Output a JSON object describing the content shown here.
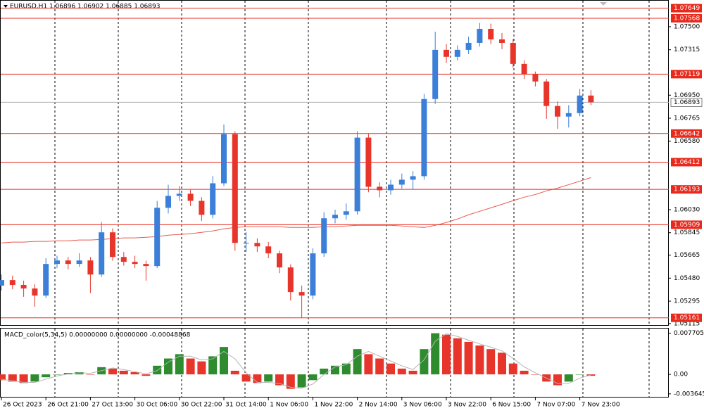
{
  "chart_data": [
    {
      "type": "candlestick",
      "title": "EURUSD,H1  1.06896 1.06902 1.06885 1.06893",
      "x": [
        0,
        4,
        8,
        12,
        16,
        20,
        24,
        28,
        32,
        36,
        40,
        44,
        48,
        52,
        56,
        60,
        64,
        68,
        72,
        76,
        80,
        84,
        88,
        92,
        96,
        100,
        104,
        108,
        112,
        116,
        120,
        124,
        128,
        132,
        136,
        140,
        144,
        148,
        152,
        156,
        160,
        164,
        168,
        172,
        176,
        180,
        184,
        188,
        192,
        196,
        200,
        204,
        208,
        212
      ],
      "open": [
        1.0542,
        1.05464,
        1.05425,
        1.05397,
        1.0534,
        1.05594,
        1.05622,
        1.05594,
        1.05622,
        1.05509,
        1.05848,
        1.0565,
        1.05611,
        1.05594,
        1.05577,
        1.06045,
        1.06141,
        1.06158,
        1.06101,
        1.05989,
        1.06242,
        1.06637,
        1.05763,
        1.05763,
        1.05735,
        1.05679,
        1.05566,
        1.05368,
        1.0534,
        1.05679,
        1.05961,
        1.05989,
        1.06017,
        1.06609,
        1.06214,
        1.06186,
        1.06231,
        1.06271,
        1.06299,
        1.06919,
        1.07314,
        1.07258,
        1.07314,
        1.0737,
        1.07483,
        1.07398,
        1.0737,
        1.07201,
        1.07117,
        1.0706,
        1.06863,
        1.06778,
        1.06806,
        1.06947
      ],
      "high": [
        1.0551,
        1.055,
        1.0546,
        1.0543,
        1.0564,
        1.0566,
        1.0565,
        1.0568,
        1.0565,
        1.0593,
        1.0588,
        1.0569,
        1.0566,
        1.0562,
        1.061,
        1.0623,
        1.0622,
        1.0619,
        1.0613,
        1.063,
        1.06715,
        1.0666,
        1.0585,
        1.058,
        1.0577,
        1.057,
        1.0559,
        1.0542,
        1.0572,
        1.0601,
        1.0603,
        1.0608,
        1.0666,
        1.0664,
        1.0625,
        1.0627,
        1.0632,
        1.0634,
        1.0696,
        1.0746,
        1.0736,
        1.0735,
        1.0742,
        1.0753,
        1.07525,
        1.0745,
        1.074,
        1.0723,
        1.0714,
        1.0708,
        1.069,
        1.0687,
        1.07,
        1.0699
      ],
      "low": [
        1.0538,
        1.0539,
        1.0533,
        1.0525,
        1.0532,
        1.0556,
        1.0555,
        1.0557,
        1.0536,
        1.0549,
        1.0562,
        1.0558,
        1.0556,
        1.0546,
        1.0556,
        1.06,
        1.061,
        1.0606,
        1.0594,
        1.0596,
        1.0622,
        1.057,
        1.0569,
        1.0569,
        1.0564,
        1.0552,
        1.053,
        1.0516,
        1.0531,
        1.0565,
        1.0592,
        1.0595,
        1.0599,
        1.0617,
        1.0613,
        1.0615,
        1.062,
        1.0619,
        1.0627,
        1.0688,
        1.0721,
        1.0723,
        1.0728,
        1.0734,
        1.0736,
        1.0732,
        1.0717,
        1.0708,
        1.0702,
        1.0676,
        1.0668,
        1.0669,
        1.0678,
        1.0687
      ],
      "close": [
        1.05464,
        1.05425,
        1.05397,
        1.0534,
        1.05594,
        1.05622,
        1.05594,
        1.05622,
        1.05509,
        1.05848,
        1.0565,
        1.05611,
        1.05594,
        1.05577,
        1.06045,
        1.06141,
        1.06158,
        1.06101,
        1.05989,
        1.06242,
        1.06637,
        1.05763,
        1.05763,
        1.05735,
        1.05679,
        1.05566,
        1.05368,
        1.0534,
        1.05679,
        1.05961,
        1.05989,
        1.06017,
        1.06609,
        1.06214,
        1.06186,
        1.06231,
        1.06271,
        1.06299,
        1.06919,
        1.07314,
        1.07258,
        1.07314,
        1.0737,
        1.07483,
        1.07398,
        1.0737,
        1.07201,
        1.07117,
        1.0706,
        1.06863,
        1.06778,
        1.06806,
        1.06947,
        1.06893
      ],
      "up_color": "#3b7fd9",
      "down_color": "#e8352b",
      "ma": {
        "color": "#e85a4f",
        "values": [
          1.05763,
          1.05769,
          1.05769,
          1.05775,
          1.05775,
          1.0578,
          1.0578,
          1.05786,
          1.05786,
          1.05791,
          1.05797,
          1.05803,
          1.05803,
          1.05808,
          1.05814,
          1.05825,
          1.05831,
          1.05837,
          1.05848,
          1.05859,
          1.05876,
          1.05887,
          1.05893,
          1.05893,
          1.05893,
          1.05893,
          1.05887,
          1.05887,
          1.05887,
          1.05893,
          1.05893,
          1.05899,
          1.05904,
          1.05904,
          1.05904,
          1.05904,
          1.05899,
          1.05893,
          1.05887,
          1.05904,
          1.05927,
          1.05955,
          1.05989,
          1.06017,
          1.06045,
          1.06073,
          1.06102,
          1.0613,
          1.06152,
          1.06181,
          1.06203,
          1.06231,
          1.06259,
          1.06288
        ]
      },
      "levels": {
        "color": "#e8291c",
        "values": [
          1.07649,
          1.07568,
          1.07119,
          1.06642,
          1.06412,
          1.06193,
          1.05909,
          1.05161
        ]
      },
      "last_price": 1.06893,
      "xlim": [
        0,
        240
      ],
      "ylim": [
        1.05103,
        1.07709
      ],
      "yticks": [
        {
          "value": 1.075,
          "label": "1.07500"
        },
        {
          "value": 1.07315,
          "label": "1.07315"
        },
        {
          "value": 1.0695,
          "label": "1.06950"
        },
        {
          "value": 1.06765,
          "label": "1.06765"
        },
        {
          "value": 1.0658,
          "label": "1.06580"
        },
        {
          "value": 1.0603,
          "label": "1.06030"
        },
        {
          "value": 1.05845,
          "label": "1.05845"
        },
        {
          "value": 1.05665,
          "label": "1.05665"
        },
        {
          "value": 1.0548,
          "label": "1.05480"
        },
        {
          "value": 1.05295,
          "label": "1.05295"
        },
        {
          "value": 1.05115,
          "label": "1.05115"
        }
      ],
      "xticks": [
        {
          "value": 0,
          "label": "26 Oct 2023"
        },
        {
          "value": 16,
          "label": "26 Oct 21:00"
        },
        {
          "value": 32,
          "label": "27 Oct 13:00"
        },
        {
          "value": 48,
          "label": "30 Oct 06:00"
        },
        {
          "value": 64,
          "label": "30 Oct 22:00"
        },
        {
          "value": 80,
          "label": "31 Oct 14:00"
        },
        {
          "value": 96,
          "label": "1 Nov 06:00"
        },
        {
          "value": 112,
          "label": "1 Nov 22:00"
        },
        {
          "value": 128,
          "label": "2 Nov 14:00"
        },
        {
          "value": 144,
          "label": "3 Nov 06:00"
        },
        {
          "value": 160,
          "label": "3 Nov 22:00"
        },
        {
          "value": 176,
          "label": "6 Nov 15:00"
        },
        {
          "value": 192,
          "label": "7 Nov 07:00"
        },
        {
          "value": 208,
          "label": "7 Nov 23:00"
        }
      ]
    },
    {
      "type": "macd",
      "title": "MACD_color(5,34,5) 0.00000000 0.00000000 -0.00048868",
      "values": [
        -0.00108,
        -0.00135,
        -0.00162,
        -0.00135,
        -0.00054,
        0,
        0.00027,
        0.00041,
        0,
        0.00135,
        0.00108,
        0.00068,
        0.00041,
        -0.00027,
        0.00162,
        0.00297,
        0.00378,
        0.00297,
        0.00243,
        0.00338,
        0.00513,
        0.00068,
        -0.00135,
        -0.00162,
        -0.00135,
        -0.00203,
        -0.0027,
        -0.00243,
        -0.00108,
        0.00108,
        0.00162,
        0.00203,
        0.00473,
        0.00378,
        0.00297,
        0.00203,
        0.00108,
        0.00068,
        0.00473,
        0.0077,
        0.00743,
        0.00675,
        0.00608,
        0.0054,
        0.00473,
        0.00405,
        0.00203,
        0.00068,
        0,
        -0.00135,
        -0.00203,
        -0.00135,
        0,
        -0.00027
      ],
      "signal": {
        "color": "#b4b4b4",
        "values": [
          -0.0009,
          -0.0012,
          -0.0015,
          -0.0015,
          -0.0009,
          -0.0003,
          0.0001,
          0.0003,
          0.0002,
          0.0007,
          0.0012,
          0.0009,
          0.0005,
          0.0001,
          0.0007,
          0.0023,
          0.0034,
          0.0034,
          0.0027,
          0.0029,
          0.0043,
          0.0029,
          0.0003,
          -0.0015,
          -0.0015,
          -0.0017,
          -0.0024,
          -0.0026,
          -0.0018,
          0,
          0.0014,
          0.0018,
          0.0034,
          0.0043,
          0.0034,
          0.0025,
          0.0016,
          0.0009,
          0.0027,
          0.0062,
          0.0076,
          0.0071,
          0.0064,
          0.0057,
          0.0051,
          0.0044,
          0.003,
          0.0014,
          0.0003,
          -0.0007,
          -0.0017,
          -0.0017,
          -0.0007,
          -0.0001
        ]
      },
      "up_color": "#2e8b2e",
      "down_color": "#e8352b",
      "ylim": [
        -0.00433,
        0.00857
      ],
      "yticks": [
        0.0077059,
        {
          "value": 0,
          "label": "0.00"
        },
        -0.0036456
      ]
    }
  ]
}
